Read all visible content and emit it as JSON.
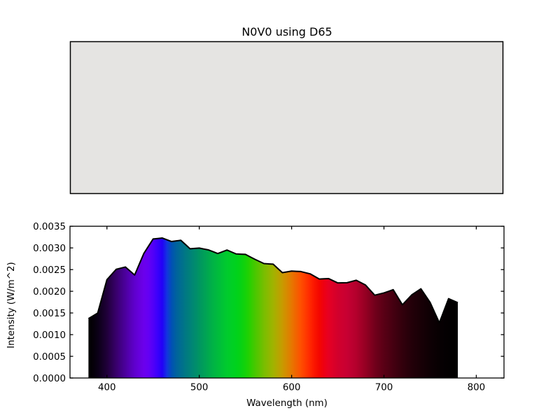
{
  "figure": {
    "title": "N0V0 using D65",
    "background": "#ffffff"
  },
  "swatch": {
    "color": "#e5e4e2",
    "border_color": "#000000"
  },
  "chart_data": {
    "type": "area",
    "title": "N0V0 using D65",
    "xlabel": "Wavelength (nm)",
    "ylabel": "Intensity (W/m^2)",
    "xlim": [
      360,
      830
    ],
    "ylim": [
      0,
      0.0035
    ],
    "grid": false,
    "legend": "none",
    "line_color": "#000000",
    "line_width": 2,
    "x_nm": [
      380,
      385,
      390,
      395,
      400,
      405,
      410,
      415,
      420,
      425,
      430,
      435,
      440,
      445,
      450,
      455,
      460,
      465,
      470,
      475,
      480,
      485,
      490,
      495,
      500,
      505,
      510,
      515,
      520,
      525,
      530,
      535,
      540,
      545,
      550,
      555,
      560,
      565,
      570,
      575,
      580,
      585,
      590,
      595,
      600,
      605,
      610,
      615,
      620,
      625,
      630,
      635,
      640,
      645,
      650,
      655,
      660,
      665,
      670,
      675,
      680,
      685,
      690,
      695,
      700,
      705,
      710,
      715,
      720,
      725,
      730,
      735,
      740,
      745,
      750,
      755,
      760,
      765,
      770,
      775,
      780
    ],
    "intensity": [
      0.0013693,
      0.0014333,
      0.0014974,
      0.0018824,
      0.0022675,
      0.0023871,
      0.0025067,
      0.0025334,
      0.00256,
      0.0024676,
      0.0023751,
      0.0026242,
      0.0028733,
      0.0030396,
      0.003206,
      0.003217,
      0.0032281,
      0.0031876,
      0.0031472,
      0.0031617,
      0.0031763,
      0.0030789,
      0.0029814,
      0.0029888,
      0.0029963,
      0.002975,
      0.0029538,
      0.0029125,
      0.0028712,
      0.0029109,
      0.0029507,
      0.0029057,
      0.0028607,
      0.0028558,
      0.0028509,
      0.0027954,
      0.00274,
      0.0026898,
      0.0026396,
      0.0026321,
      0.0026246,
      0.0025273,
      0.00243,
      0.0024481,
      0.0024662,
      0.0024606,
      0.002455,
      0.002429,
      0.0024029,
      0.0023425,
      0.0022821,
      0.0022877,
      0.0022934,
      0.002243,
      0.0021927,
      0.0021953,
      0.0021979,
      0.0022261,
      0.0022544,
      0.0021997,
      0.002145,
      0.0020277,
      0.0019104,
      0.0019362,
      0.0019621,
      0.0019996,
      0.0020372,
      0.0018626,
      0.001688,
      0.0018014,
      0.0019149,
      0.0019861,
      0.0020574,
      0.0018999,
      0.0017424,
      0.0015071,
      0.0012719,
      0.0015512,
      0.0018305,
      0.0017836,
      0.0017367
    ],
    "xticks": [
      {
        "value": 400,
        "label": "400"
      },
      {
        "value": 500,
        "label": "500"
      },
      {
        "value": 600,
        "label": "600"
      },
      {
        "value": 700,
        "label": "700"
      },
      {
        "value": 800,
        "label": "800"
      }
    ],
    "yticks": [
      {
        "value": 0.0,
        "label": "0.0000"
      },
      {
        "value": 0.0005,
        "label": "0.0005"
      },
      {
        "value": 0.001,
        "label": "0.0010"
      },
      {
        "value": 0.0015,
        "label": "0.0015"
      },
      {
        "value": 0.002,
        "label": "0.0020"
      },
      {
        "value": 0.0025,
        "label": "0.0025"
      },
      {
        "value": 0.003,
        "label": "0.0030"
      },
      {
        "value": 0.0035,
        "label": "0.0035"
      }
    ],
    "spectrum_gradient": [
      {
        "wl": 380,
        "c": "#000000"
      },
      {
        "wl": 385,
        "c": "#050009"
      },
      {
        "wl": 390,
        "c": "#0b0016"
      },
      {
        "wl": 395,
        "c": "#150027"
      },
      {
        "wl": 400,
        "c": "#20003a"
      },
      {
        "wl": 405,
        "c": "#2c0052"
      },
      {
        "wl": 410,
        "c": "#38006b"
      },
      {
        "wl": 415,
        "c": "#420085"
      },
      {
        "wl": 420,
        "c": "#4c009d"
      },
      {
        "wl": 425,
        "c": "#5600b6"
      },
      {
        "wl": 430,
        "c": "#5f00cd"
      },
      {
        "wl": 435,
        "c": "#6600dd"
      },
      {
        "wl": 440,
        "c": "#6b00ec"
      },
      {
        "wl": 445,
        "c": "#6400f4"
      },
      {
        "wl": 450,
        "c": "#5200f8"
      },
      {
        "wl": 455,
        "c": "#3a00fc"
      },
      {
        "wl": 460,
        "c": "#2101f6"
      },
      {
        "wl": 465,
        "c": "#1335e0"
      },
      {
        "wl": 470,
        "c": "#0051b4"
      },
      {
        "wl": 475,
        "c": "#00629d"
      },
      {
        "wl": 480,
        "c": "#006d90"
      },
      {
        "wl": 485,
        "c": "#007883"
      },
      {
        "wl": 490,
        "c": "#008179"
      },
      {
        "wl": 495,
        "c": "#008b6e"
      },
      {
        "wl": 500,
        "c": "#009562"
      },
      {
        "wl": 505,
        "c": "#009f58"
      },
      {
        "wl": 510,
        "c": "#00a94e"
      },
      {
        "wl": 515,
        "c": "#00b345"
      },
      {
        "wl": 520,
        "c": "#00bb3d"
      },
      {
        "wl": 525,
        "c": "#00c335"
      },
      {
        "wl": 530,
        "c": "#00cb2d"
      },
      {
        "wl": 535,
        "c": "#00cf25"
      },
      {
        "wl": 540,
        "c": "#00d21d"
      },
      {
        "wl": 545,
        "c": "#07d213"
      },
      {
        "wl": 550,
        "c": "#14d209"
      },
      {
        "wl": 555,
        "c": "#2ad000"
      },
      {
        "wl": 560,
        "c": "#46c800"
      },
      {
        "wl": 565,
        "c": "#5ec300"
      },
      {
        "wl": 570,
        "c": "#78be00"
      },
      {
        "wl": 575,
        "c": "#8cb900"
      },
      {
        "wl": 580,
        "c": "#a0b300"
      },
      {
        "wl": 585,
        "c": "#b4a700"
      },
      {
        "wl": 590,
        "c": "#c89a00"
      },
      {
        "wl": 595,
        "c": "#d78900"
      },
      {
        "wl": 600,
        "c": "#e67700"
      },
      {
        "wl": 605,
        "c": "#f26300"
      },
      {
        "wl": 610,
        "c": "#fe4f00"
      },
      {
        "wl": 615,
        "c": "#ff3b00"
      },
      {
        "wl": 620,
        "c": "#ff2700"
      },
      {
        "wl": 625,
        "c": "#fa1400"
      },
      {
        "wl": 630,
        "c": "#f40600"
      },
      {
        "wl": 635,
        "c": "#ee0013"
      },
      {
        "wl": 640,
        "c": "#e60022"
      },
      {
        "wl": 645,
        "c": "#dc0028"
      },
      {
        "wl": 650,
        "c": "#d2002c"
      },
      {
        "wl": 655,
        "c": "#cd0030"
      },
      {
        "wl": 660,
        "c": "#c70032"
      },
      {
        "wl": 665,
        "c": "#bd0030"
      },
      {
        "wl": 670,
        "c": "#b3002c"
      },
      {
        "wl": 675,
        "c": "#a40028"
      },
      {
        "wl": 680,
        "c": "#950023"
      },
      {
        "wl": 685,
        "c": "#84001f"
      },
      {
        "wl": 690,
        "c": "#72001b"
      },
      {
        "wl": 695,
        "c": "#650018"
      },
      {
        "wl": 700,
        "c": "#590015"
      },
      {
        "wl": 710,
        "c": "#450011"
      },
      {
        "wl": 720,
        "c": "#32000c"
      },
      {
        "wl": 730,
        "c": "#230009"
      },
      {
        "wl": 740,
        "c": "#180006"
      },
      {
        "wl": 750,
        "c": "#0e0004"
      },
      {
        "wl": 760,
        "c": "#070002"
      },
      {
        "wl": 770,
        "c": "#030001"
      },
      {
        "wl": 780,
        "c": "#000000"
      }
    ]
  }
}
